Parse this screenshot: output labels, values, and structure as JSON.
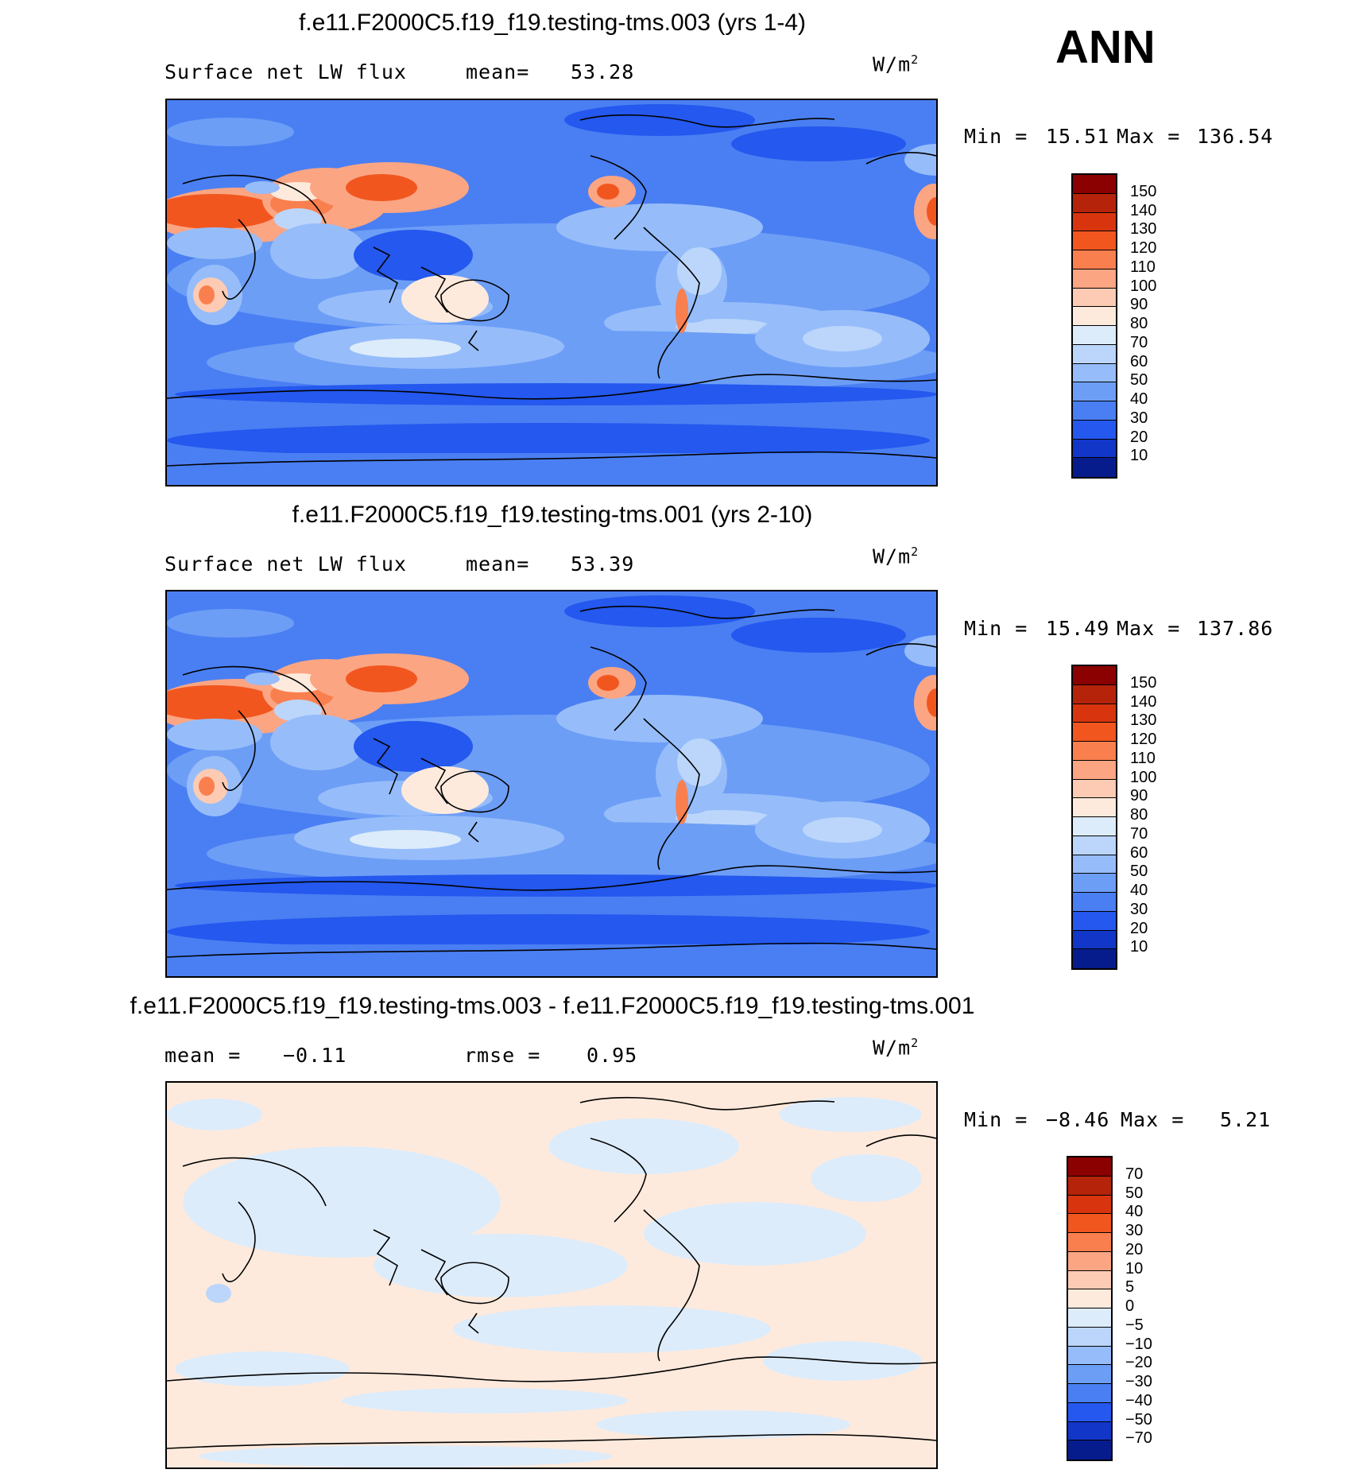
{
  "season": "ANN",
  "units": "W/m",
  "units_sup": "2",
  "panels": [
    {
      "title": "f.e11.F2000C5.f19_f19.testing-tms.003 (yrs 1-4)",
      "left_label": "Surface net LW flux",
      "mid_label": "mean=",
      "mid_value": "53.28",
      "min_label": "Min =",
      "min_value": "15.51",
      "max_label": "Max =",
      "max_value": "136.54"
    },
    {
      "title": "f.e11.F2000C5.f19_f19.testing-tms.001 (yrs 2-10)",
      "left_label": "Surface net LW flux",
      "mid_label": "mean=",
      "mid_value": "53.39",
      "min_label": "Min =",
      "min_value": "15.49",
      "max_label": "Max =",
      "max_value": "137.86"
    },
    {
      "title": "f.e11.F2000C5.f19_f19.testing-tms.003 - f.e11.F2000C5.f19_f19.testing-tms.001",
      "left_label": "mean =",
      "left_value": "−0.11",
      "mid_label": "rmse =",
      "mid_value": "0.95",
      "min_label": "Min =",
      "min_value": "−8.46",
      "max_label": "Max =",
      "max_value": "5.21"
    }
  ],
  "colorbars": {
    "field": {
      "labels": [
        "150",
        "140",
        "130",
        "120",
        "110",
        "100",
        "90",
        "80",
        "70",
        "60",
        "50",
        "40",
        "30",
        "20",
        "10"
      ],
      "colors": [
        "#8b0000",
        "#b5230a",
        "#d8350f",
        "#f2561f",
        "#fa7f4f",
        "#fba583",
        "#fdcbb3",
        "#feeadc",
        "#ddecfb",
        "#bcd6fb",
        "#96bdfa",
        "#6d9ef6",
        "#4a7ff3",
        "#2458ee",
        "#1236c8",
        "#071c8c"
      ]
    },
    "diff": {
      "labels": [
        "70",
        "50",
        "40",
        "30",
        "20",
        "10",
        "5",
        "0",
        "−5",
        "−10",
        "−20",
        "−30",
        "−40",
        "−50",
        "−70"
      ],
      "colors": [
        "#8b0000",
        "#b5230a",
        "#d8350f",
        "#f2561f",
        "#fa7f4f",
        "#fba583",
        "#fdcbb3",
        "#feeadc",
        "#ddecfb",
        "#bcd6fb",
        "#96bdfa",
        "#6d9ef6",
        "#4a7ff3",
        "#2458ee",
        "#1236c8",
        "#071c8c"
      ]
    }
  }
}
